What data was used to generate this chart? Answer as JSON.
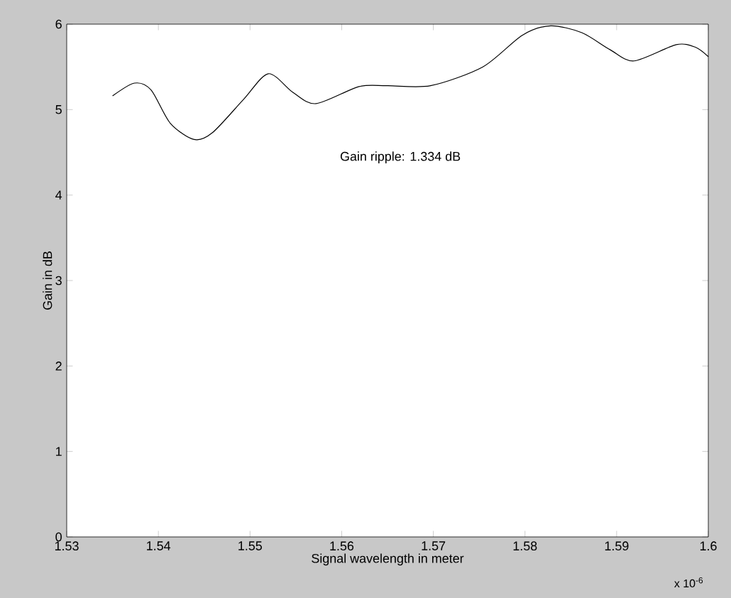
{
  "chart_data": {
    "type": "line",
    "xlabel": "Signal wavelength in meter",
    "ylabel": "Gain in dB",
    "annotations": [
      "Gain ripple: 1.334 dB",
      "x 10$^{-6}$"
    ],
    "x": [
      1.535,
      1.5374,
      1.5392,
      1.5413,
      1.5439,
      1.5459,
      1.5493,
      1.552,
      1.5547,
      1.5572,
      1.5619,
      1.565,
      1.5697,
      1.5754,
      1.5797,
      1.5828,
      1.5862,
      1.5893,
      1.5919,
      1.5965,
      1.5986,
      1.6
    ],
    "series": [
      {
        "color": "#000000",
        "values": [
          5.16,
          5.31,
          5.23,
          4.84,
          4.65,
          4.73,
          5.12,
          5.42,
          5.2,
          5.07,
          5.27,
          5.28,
          5.28,
          5.5,
          5.87,
          5.98,
          5.9,
          5.7,
          5.57,
          5.76,
          5.73,
          5.62
        ]
      }
    ],
    "xlim": [
      1.53,
      1.6
    ],
    "ylim": [
      0,
      6
    ],
    "xticks": [
      1.53,
      1.54,
      1.55,
      1.56,
      1.57,
      1.58,
      1.59,
      1.6
    ],
    "yticks": [
      0,
      1,
      2,
      3,
      4,
      5,
      6
    ],
    "grid": false,
    "marker": "none",
    "line_style": "solid"
  }
}
